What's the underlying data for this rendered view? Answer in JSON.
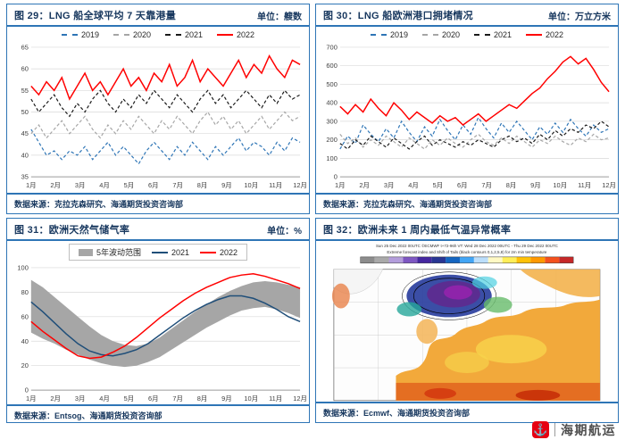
{
  "panels": [
    {
      "fig_label": "图 29：",
      "title": "LNG 船全球平均 7 天靠港量",
      "unit": "单位：艘数",
      "source": "数据来源：克拉克森研究、海通期货投资咨询部"
    },
    {
      "fig_label": "图 30：",
      "title": "LNG 船欧洲港口拥堵情况",
      "unit": "单位：万立方米",
      "source": "数据来源：克拉克森研究、海通期货投资咨询部"
    },
    {
      "fig_label": "图 31：",
      "title": "欧洲天然气储气率",
      "unit": "单位：%",
      "source": "数据来源：Entsog、海通期货投资咨询部"
    },
    {
      "fig_label": "图 32：",
      "title": "欧洲未来 1 周内最低气温异常概率",
      "unit": "",
      "source": "数据来源：Ecmwf、海通期货投资咨询部"
    }
  ],
  "logo": {
    "text": "海期航运"
  },
  "colors": {
    "panel_border": "#2e75b6",
    "header_text": "#17375e",
    "grid_line": "#d9d9d9",
    "series_2019": "#2e75b6",
    "series_2020": "#a6a6a6",
    "series_2021_dashed": "#1a1a1a",
    "series_2021_solid": "#1f4e79",
    "series_2022": "#ff0000",
    "band": "#a6a6a6",
    "logo_red": "#e60012"
  },
  "chart_data": [
    {
      "type": "line",
      "title": "LNG 船全球平均 7 天靠港量",
      "ylabel": "艘数",
      "categories": [
        "1月",
        "2月",
        "3月",
        "4月",
        "5月",
        "6月",
        "7月",
        "8月",
        "9月",
        "10月",
        "11月",
        "12月"
      ],
      "ylim": [
        35,
        65
      ],
      "yticks": [
        35,
        40,
        45,
        50,
        55,
        60,
        65
      ],
      "grid": true,
      "legend_position": "top",
      "series": [
        {
          "name": "2019",
          "color": "#2e75b6",
          "dash": true,
          "values": [
            46,
            43,
            40,
            41,
            39,
            41,
            40,
            42,
            39,
            41,
            43,
            40,
            42,
            40,
            38,
            41,
            43,
            41,
            39,
            42,
            40,
            43,
            41,
            39,
            42,
            40,
            42,
            44,
            41,
            43,
            42,
            40,
            43,
            41,
            44,
            43
          ]
        },
        {
          "name": "2020",
          "color": "#a6a6a6",
          "dash": true,
          "values": [
            45,
            47,
            44,
            46,
            48,
            45,
            47,
            49,
            46,
            44,
            47,
            45,
            48,
            46,
            49,
            47,
            45,
            48,
            46,
            49,
            47,
            45,
            48,
            50,
            47,
            49,
            46,
            48,
            45,
            47,
            49,
            46,
            48,
            50,
            48,
            49
          ]
        },
        {
          "name": "2021",
          "color": "#1a1a1a",
          "dash": true,
          "values": [
            53,
            50,
            52,
            54,
            51,
            49,
            52,
            50,
            53,
            55,
            52,
            50,
            53,
            51,
            54,
            52,
            55,
            53,
            51,
            54,
            52,
            50,
            53,
            55,
            52,
            54,
            51,
            53,
            55,
            53,
            51,
            54,
            52,
            55,
            53,
            54
          ]
        },
        {
          "name": "2022",
          "color": "#ff0000",
          "dash": false,
          "values": [
            56,
            54,
            57,
            55,
            58,
            53,
            56,
            59,
            55,
            57,
            54,
            57,
            60,
            56,
            58,
            55,
            59,
            57,
            61,
            56,
            58,
            62,
            57,
            60,
            58,
            56,
            59,
            62,
            58,
            61,
            59,
            63,
            60,
            58,
            62,
            61
          ]
        }
      ]
    },
    {
      "type": "line",
      "title": "LNG 船欧洲港口拥堵情况",
      "ylabel": "万立方米",
      "categories": [
        "1月",
        "2月",
        "3月",
        "4月",
        "5月",
        "6月",
        "7月",
        "8月",
        "9月",
        "10月",
        "11月",
        "12月"
      ],
      "ylim": [
        0,
        700
      ],
      "yticks": [
        0,
        100,
        200,
        300,
        400,
        500,
        600,
        700
      ],
      "grid": true,
      "legend_position": "top",
      "series": [
        {
          "name": "2019",
          "color": "#2e75b6",
          "dash": true,
          "values": [
            150,
            220,
            180,
            280,
            230,
            190,
            260,
            210,
            300,
            240,
            190,
            270,
            220,
            310,
            250,
            200,
            280,
            230,
            320,
            260,
            210,
            290,
            240,
            300,
            250,
            200,
            270,
            230,
            290,
            240,
            310,
            260,
            220,
            280,
            240,
            260
          ]
        },
        {
          "name": "2020",
          "color": "#a6a6a6",
          "dash": true,
          "values": [
            230,
            180,
            210,
            160,
            200,
            170,
            220,
            190,
            160,
            210,
            180,
            150,
            200,
            170,
            210,
            180,
            160,
            200,
            230,
            190,
            170,
            210,
            180,
            220,
            190,
            160,
            200,
            180,
            220,
            190,
            170,
            210,
            190,
            230,
            200,
            210
          ]
        },
        {
          "name": "2021",
          "color": "#1a1a1a",
          "dash": true,
          "values": [
            180,
            150,
            200,
            170,
            220,
            190,
            160,
            210,
            180,
            150,
            190,
            220,
            170,
            200,
            180,
            160,
            190,
            170,
            200,
            180,
            160,
            200,
            220,
            190,
            210,
            180,
            230,
            200,
            250,
            220,
            260,
            240,
            280,
            260,
            300,
            270
          ]
        },
        {
          "name": "2022",
          "color": "#ff0000",
          "dash": false,
          "values": [
            380,
            340,
            390,
            350,
            420,
            370,
            330,
            400,
            360,
            310,
            350,
            320,
            290,
            330,
            300,
            320,
            280,
            310,
            340,
            300,
            330,
            360,
            390,
            370,
            410,
            450,
            480,
            530,
            570,
            620,
            650,
            610,
            640,
            580,
            510,
            460
          ]
        }
      ]
    },
    {
      "type": "line",
      "title": "欧洲天然气储气率",
      "ylabel": "%",
      "categories": [
        "1月",
        "2月",
        "3月",
        "4月",
        "5月",
        "6月",
        "7月",
        "8月",
        "9月",
        "10月",
        "11月",
        "12月"
      ],
      "ylim": [
        0,
        100
      ],
      "yticks": [
        0,
        20,
        40,
        60,
        80,
        100
      ],
      "grid": true,
      "legend_position": "top",
      "band": {
        "name": "5年波动范围",
        "color": "#a6a6a6",
        "upper": [
          90,
          84,
          76,
          68,
          60,
          52,
          45,
          40,
          37,
          36,
          38,
          43,
          50,
          57,
          64,
          70,
          76,
          81,
          85,
          88,
          89,
          88,
          86,
          84
        ],
        "lower": [
          47,
          42,
          38,
          33,
          29,
          25,
          22,
          20,
          19,
          20,
          23,
          27,
          33,
          39,
          45,
          51,
          56,
          61,
          65,
          67,
          68,
          66,
          63,
          59
        ]
      },
      "series": [
        {
          "name": "2021",
          "color": "#1f4e79",
          "dash": false,
          "values": [
            72,
            64,
            55,
            46,
            38,
            32,
            29,
            28,
            30,
            33,
            38,
            45,
            52,
            59,
            65,
            70,
            74,
            77,
            77,
            75,
            71,
            66,
            60,
            56
          ]
        },
        {
          "name": "2022",
          "color": "#ff0000",
          "dash": false,
          "values": [
            56,
            48,
            41,
            34,
            28,
            26,
            27,
            31,
            36,
            43,
            51,
            59,
            66,
            73,
            79,
            84,
            88,
            92,
            94,
            95,
            93,
            90,
            87,
            83
          ]
        }
      ]
    },
    {
      "type": "map",
      "title": "欧洲未来 1 周内最低气温异常概率",
      "header_line1": "Sun 25 Dec 2022 00UTC ©ECMWF t+72-96h VT: Wed 28 Dec 2022 00UTC - Thu 29 Dec 2022 00UTC",
      "header_line2": "Extreme forecast index and Shift of Tails (black contours 0,1,2,5,8) for 2m min temperature",
      "colorbar": [
        "#8c8c8c",
        "#a9a9a9",
        "#b39ddb",
        "#7e57c2",
        "#4527a0",
        "#283593",
        "#1565c0",
        "#42a5f5",
        "#bbdefb",
        "#fff9c4",
        "#ffee58",
        "#ffc107",
        "#ff9800",
        "#f4511e",
        "#c62828"
      ]
    }
  ]
}
